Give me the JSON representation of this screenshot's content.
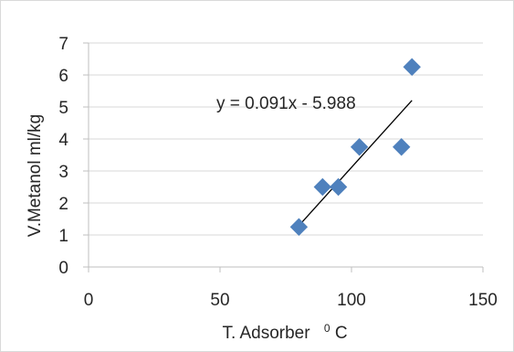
{
  "chart_data": {
    "type": "scatter",
    "title": "",
    "xlabel": "T. Adsorber",
    "xlabel_unit_sup": "0",
    "xlabel_unit": "C",
    "ylabel": "V.Metanol  ml/kg",
    "xlim": [
      0,
      150
    ],
    "ylim": [
      0,
      7
    ],
    "xticks": [
      "0",
      "50",
      "100",
      "150"
    ],
    "yticks": [
      "0",
      "1",
      "2",
      "3",
      "4",
      "5",
      "6",
      "7"
    ],
    "grid": "horizontal",
    "legend": "none",
    "marker_color": "#4f81bd",
    "series": [
      {
        "x": [
          80,
          89,
          95,
          103,
          119,
          123
        ],
        "y": [
          1.25,
          2.5,
          2.5,
          3.75,
          3.75,
          6.25
        ]
      }
    ],
    "trendline": {
      "type": "linear",
      "slope": 0.091,
      "intercept": -5.988,
      "x_range": [
        80,
        123
      ],
      "equation": "y = 0.091x - 5.988"
    }
  }
}
